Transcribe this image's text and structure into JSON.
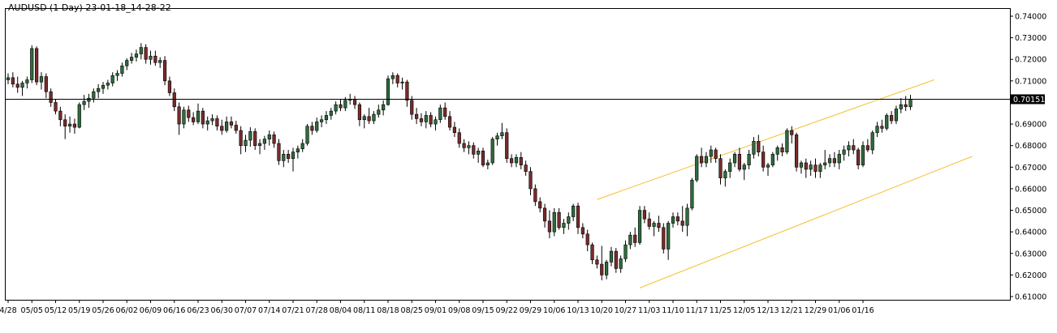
{
  "header": {
    "title": "AUDUSD (1 Day) 23-01-18_14-28-22"
  },
  "colors": {
    "bull_body": "#2e6b3c",
    "bear_body": "#7a2b2b",
    "wick": "#000000",
    "channel": "#f2c12e",
    "price_line": "#000000",
    "price_box": "#000000",
    "frame": "#000000"
  },
  "chart_data": {
    "type": "candlestick",
    "title": "AUDUSD (1 Day) 23-01-18_14-28-22",
    "ylim": [
      0.61,
      0.74
    ],
    "yticks": [
      "0.74000",
      "0.73000",
      "0.72000",
      "0.71000",
      "0.70000",
      "0.69000",
      "0.68000",
      "0.67000",
      "0.66000",
      "0.65000",
      "0.64000",
      "0.63000",
      "0.62000",
      "0.61000"
    ],
    "xticks": [
      "4/28",
      "05/05",
      "05/12",
      "05/19",
      "05/26",
      "06/02",
      "06/09",
      "06/16",
      "06/23",
      "06/30",
      "07/07",
      "07/14",
      "07/21",
      "07/28",
      "08/04",
      "08/11",
      "08/18",
      "08/25",
      "09/01",
      "09/08",
      "09/15",
      "09/22",
      "09/29",
      "10/06",
      "10/13",
      "10/20",
      "10/27",
      "11/03",
      "11/10",
      "11/17",
      "11/25",
      "12/05",
      "12/13",
      "12/21",
      "12/29",
      "01/06",
      "01/16"
    ],
    "current_price": 0.7015,
    "current_price_label": "0.70151",
    "channel": {
      "upper": {
        "start_index": 124,
        "start_value": 0.655,
        "end_index": 195,
        "end_value": 0.7105
      },
      "lower": {
        "start_index": 133,
        "start_value": 0.614,
        "end_index": 203,
        "end_value": 0.675
      }
    },
    "candles": [
      [
        0.7105,
        0.7135,
        0.7085,
        0.7115
      ],
      [
        0.7115,
        0.714,
        0.707,
        0.7085
      ],
      [
        0.7085,
        0.712,
        0.7045,
        0.707
      ],
      [
        0.707,
        0.71,
        0.703,
        0.709
      ],
      [
        0.709,
        0.712,
        0.7065,
        0.7105
      ],
      [
        0.7105,
        0.7265,
        0.709,
        0.725
      ],
      [
        0.725,
        0.726,
        0.708,
        0.7095
      ],
      [
        0.7095,
        0.714,
        0.706,
        0.712
      ],
      [
        0.712,
        0.7135,
        0.702,
        0.705
      ],
      [
        0.705,
        0.7065,
        0.698,
        0.7
      ],
      [
        0.7,
        0.7015,
        0.6945,
        0.696
      ],
      [
        0.696,
        0.698,
        0.689,
        0.692
      ],
      [
        0.692,
        0.6945,
        0.683,
        0.689
      ],
      [
        0.689,
        0.6935,
        0.686,
        0.69
      ],
      [
        0.69,
        0.6925,
        0.6855,
        0.6885
      ],
      [
        0.6885,
        0.7,
        0.688,
        0.699
      ],
      [
        0.699,
        0.7035,
        0.6965,
        0.7005
      ],
      [
        0.7005,
        0.704,
        0.6975,
        0.702
      ],
      [
        0.702,
        0.7065,
        0.7,
        0.705
      ],
      [
        0.705,
        0.7085,
        0.702,
        0.7065
      ],
      [
        0.7065,
        0.7095,
        0.704,
        0.708
      ],
      [
        0.708,
        0.7105,
        0.706,
        0.709
      ],
      [
        0.709,
        0.714,
        0.7075,
        0.7125
      ],
      [
        0.7125,
        0.715,
        0.71,
        0.7135
      ],
      [
        0.7135,
        0.7185,
        0.712,
        0.717
      ],
      [
        0.717,
        0.7205,
        0.715,
        0.7195
      ],
      [
        0.7195,
        0.723,
        0.718,
        0.721
      ],
      [
        0.721,
        0.7245,
        0.719,
        0.7225
      ],
      [
        0.7225,
        0.7275,
        0.72,
        0.7255
      ],
      [
        0.7255,
        0.727,
        0.718,
        0.72
      ],
      [
        0.72,
        0.724,
        0.7175,
        0.7215
      ],
      [
        0.7215,
        0.724,
        0.717,
        0.7185
      ],
      [
        0.7185,
        0.721,
        0.716,
        0.7195
      ],
      [
        0.7195,
        0.7215,
        0.708,
        0.71
      ],
      [
        0.71,
        0.712,
        0.703,
        0.7045
      ],
      [
        0.7045,
        0.7065,
        0.696,
        0.698
      ],
      [
        0.698,
        0.7,
        0.685,
        0.69
      ],
      [
        0.69,
        0.698,
        0.688,
        0.6965
      ],
      [
        0.6965,
        0.6985,
        0.691,
        0.693
      ],
      [
        0.693,
        0.6955,
        0.6895,
        0.691
      ],
      [
        0.691,
        0.6995,
        0.69,
        0.696
      ],
      [
        0.696,
        0.6975,
        0.688,
        0.69
      ],
      [
        0.69,
        0.6935,
        0.687,
        0.6915
      ],
      [
        0.6915,
        0.6945,
        0.6895,
        0.6925
      ],
      [
        0.6925,
        0.694,
        0.687,
        0.689
      ],
      [
        0.689,
        0.692,
        0.685,
        0.687
      ],
      [
        0.687,
        0.6935,
        0.686,
        0.691
      ],
      [
        0.691,
        0.6935,
        0.688,
        0.6895
      ],
      [
        0.6895,
        0.6915,
        0.6855,
        0.687
      ],
      [
        0.687,
        0.689,
        0.676,
        0.68
      ],
      [
        0.68,
        0.685,
        0.677,
        0.6825
      ],
      [
        0.6825,
        0.6885,
        0.6795,
        0.6865
      ],
      [
        0.6865,
        0.688,
        0.678,
        0.68
      ],
      [
        0.68,
        0.683,
        0.676,
        0.681
      ],
      [
        0.681,
        0.6845,
        0.678,
        0.683
      ],
      [
        0.683,
        0.687,
        0.68,
        0.685
      ],
      [
        0.685,
        0.6865,
        0.679,
        0.681
      ],
      [
        0.681,
        0.683,
        0.671,
        0.673
      ],
      [
        0.673,
        0.678,
        0.67,
        0.676
      ],
      [
        0.676,
        0.678,
        0.672,
        0.674
      ],
      [
        0.674,
        0.679,
        0.668,
        0.677
      ],
      [
        0.677,
        0.68,
        0.674,
        0.6785
      ],
      [
        0.6785,
        0.683,
        0.677,
        0.681
      ],
      [
        0.681,
        0.69,
        0.68,
        0.689
      ],
      [
        0.689,
        0.691,
        0.685,
        0.687
      ],
      [
        0.687,
        0.693,
        0.686,
        0.691
      ],
      [
        0.691,
        0.694,
        0.6885,
        0.692
      ],
      [
        0.692,
        0.696,
        0.69,
        0.694
      ],
      [
        0.694,
        0.6975,
        0.692,
        0.696
      ],
      [
        0.696,
        0.7005,
        0.6945,
        0.699
      ],
      [
        0.699,
        0.7015,
        0.696,
        0.6975
      ],
      [
        0.6975,
        0.7025,
        0.696,
        0.701
      ],
      [
        0.701,
        0.704,
        0.699,
        0.7015
      ],
      [
        0.7015,
        0.703,
        0.697,
        0.699
      ],
      [
        0.699,
        0.7,
        0.689,
        0.692
      ],
      [
        0.692,
        0.6945,
        0.688,
        0.6935
      ],
      [
        0.6935,
        0.6975,
        0.69,
        0.6915
      ],
      [
        0.6915,
        0.696,
        0.69,
        0.6945
      ],
      [
        0.6945,
        0.699,
        0.693,
        0.6965
      ],
      [
        0.6965,
        0.701,
        0.694,
        0.699
      ],
      [
        0.699,
        0.7125,
        0.6985,
        0.711
      ],
      [
        0.711,
        0.714,
        0.7085,
        0.7125
      ],
      [
        0.7125,
        0.7135,
        0.707,
        0.709
      ],
      [
        0.709,
        0.7115,
        0.706,
        0.7095
      ],
      [
        0.7095,
        0.7105,
        0.698,
        0.701
      ],
      [
        0.701,
        0.703,
        0.692,
        0.6945
      ],
      [
        0.6945,
        0.6975,
        0.69,
        0.6925
      ],
      [
        0.6925,
        0.695,
        0.689,
        0.691
      ],
      [
        0.691,
        0.696,
        0.688,
        0.694
      ],
      [
        0.694,
        0.6955,
        0.6885,
        0.69
      ],
      [
        0.69,
        0.6935,
        0.687,
        0.692
      ],
      [
        0.692,
        0.699,
        0.6905,
        0.6975
      ],
      [
        0.6975,
        0.7,
        0.692,
        0.6935
      ],
      [
        0.6935,
        0.696,
        0.687,
        0.6885
      ],
      [
        0.6885,
        0.691,
        0.684,
        0.686
      ],
      [
        0.686,
        0.688,
        0.679,
        0.681
      ],
      [
        0.681,
        0.683,
        0.677,
        0.679
      ],
      [
        0.679,
        0.682,
        0.676,
        0.68
      ],
      [
        0.68,
        0.6815,
        0.674,
        0.676
      ],
      [
        0.676,
        0.679,
        0.672,
        0.6775
      ],
      [
        0.6775,
        0.679,
        0.67,
        0.671
      ],
      [
        0.671,
        0.6735,
        0.669,
        0.672
      ],
      [
        0.672,
        0.684,
        0.671,
        0.683
      ],
      [
        0.683,
        0.686,
        0.68,
        0.6845
      ],
      [
        0.6845,
        0.6905,
        0.683,
        0.686
      ],
      [
        0.686,
        0.688,
        0.672,
        0.674
      ],
      [
        0.674,
        0.676,
        0.67,
        0.672
      ],
      [
        0.672,
        0.676,
        0.67,
        0.6745
      ],
      [
        0.6745,
        0.677,
        0.669,
        0.671
      ],
      [
        0.671,
        0.673,
        0.666,
        0.668
      ],
      [
        0.668,
        0.67,
        0.657,
        0.66
      ],
      [
        0.66,
        0.662,
        0.652,
        0.654
      ],
      [
        0.654,
        0.656,
        0.649,
        0.651
      ],
      [
        0.651,
        0.653,
        0.642,
        0.645
      ],
      [
        0.645,
        0.65,
        0.637,
        0.64
      ],
      [
        0.64,
        0.651,
        0.638,
        0.649
      ],
      [
        0.649,
        0.651,
        0.641,
        0.642
      ],
      [
        0.642,
        0.646,
        0.639,
        0.644
      ],
      [
        0.644,
        0.649,
        0.641,
        0.647
      ],
      [
        0.647,
        0.653,
        0.645,
        0.652
      ],
      [
        0.652,
        0.6535,
        0.639,
        0.642
      ],
      [
        0.642,
        0.644,
        0.637,
        0.639
      ],
      [
        0.639,
        0.641,
        0.631,
        0.634
      ],
      [
        0.634,
        0.635,
        0.625,
        0.627
      ],
      [
        0.627,
        0.629,
        0.623,
        0.625
      ],
      [
        0.625,
        0.6335,
        0.6175,
        0.62
      ],
      [
        0.62,
        0.627,
        0.618,
        0.626
      ],
      [
        0.626,
        0.633,
        0.624,
        0.631
      ],
      [
        0.631,
        0.6325,
        0.621,
        0.623
      ],
      [
        0.623,
        0.629,
        0.621,
        0.6275
      ],
      [
        0.6275,
        0.636,
        0.626,
        0.634
      ],
      [
        0.634,
        0.64,
        0.632,
        0.6385
      ],
      [
        0.6385,
        0.642,
        0.633,
        0.635
      ],
      [
        0.635,
        0.652,
        0.634,
        0.65
      ],
      [
        0.65,
        0.652,
        0.644,
        0.646
      ],
      [
        0.646,
        0.649,
        0.641,
        0.6425
      ],
      [
        0.6425,
        0.645,
        0.638,
        0.644
      ],
      [
        0.644,
        0.6475,
        0.64,
        0.642
      ],
      [
        0.642,
        0.644,
        0.63,
        0.632
      ],
      [
        0.632,
        0.645,
        0.627,
        0.644
      ],
      [
        0.644,
        0.649,
        0.642,
        0.647
      ],
      [
        0.647,
        0.649,
        0.643,
        0.645
      ],
      [
        0.645,
        0.652,
        0.64,
        0.643
      ],
      [
        0.643,
        0.653,
        0.638,
        0.651
      ],
      [
        0.651,
        0.665,
        0.65,
        0.664
      ],
      [
        0.664,
        0.676,
        0.663,
        0.675
      ],
      [
        0.675,
        0.679,
        0.67,
        0.672
      ],
      [
        0.672,
        0.677,
        0.67,
        0.675
      ],
      [
        0.675,
        0.68,
        0.672,
        0.678
      ],
      [
        0.678,
        0.679,
        0.672,
        0.674
      ],
      [
        0.674,
        0.676,
        0.662,
        0.665
      ],
      [
        0.665,
        0.669,
        0.661,
        0.668
      ],
      [
        0.668,
        0.674,
        0.665,
        0.672
      ],
      [
        0.672,
        0.677,
        0.67,
        0.676
      ],
      [
        0.676,
        0.679,
        0.668,
        0.669
      ],
      [
        0.669,
        0.672,
        0.664,
        0.671
      ],
      [
        0.671,
        0.678,
        0.669,
        0.676
      ],
      [
        0.676,
        0.684,
        0.674,
        0.682
      ],
      [
        0.682,
        0.685,
        0.675,
        0.677
      ],
      [
        0.677,
        0.68,
        0.668,
        0.67
      ],
      [
        0.67,
        0.672,
        0.666,
        0.671
      ],
      [
        0.671,
        0.677,
        0.67,
        0.676
      ],
      [
        0.676,
        0.68,
        0.673,
        0.679
      ],
      [
        0.679,
        0.681,
        0.675,
        0.677
      ],
      [
        0.677,
        0.688,
        0.676,
        0.687
      ],
      [
        0.687,
        0.689,
        0.681,
        0.685
      ],
      [
        0.685,
        0.686,
        0.668,
        0.67
      ],
      [
        0.67,
        0.673,
        0.667,
        0.672
      ],
      [
        0.672,
        0.674,
        0.665,
        0.669
      ],
      [
        0.669,
        0.673,
        0.666,
        0.671
      ],
      [
        0.671,
        0.674,
        0.665,
        0.668
      ],
      [
        0.668,
        0.672,
        0.665,
        0.671
      ],
      [
        0.671,
        0.678,
        0.669,
        0.672
      ],
      [
        0.672,
        0.676,
        0.67,
        0.674
      ],
      [
        0.674,
        0.677,
        0.67,
        0.672
      ],
      [
        0.672,
        0.678,
        0.669,
        0.676
      ],
      [
        0.676,
        0.68,
        0.673,
        0.678
      ],
      [
        0.678,
        0.682,
        0.675,
        0.68
      ],
      [
        0.68,
        0.683,
        0.676,
        0.678
      ],
      [
        0.678,
        0.679,
        0.669,
        0.671
      ],
      [
        0.671,
        0.682,
        0.67,
        0.68
      ],
      [
        0.68,
        0.683,
        0.677,
        0.678
      ],
      [
        0.678,
        0.687,
        0.676,
        0.686
      ],
      [
        0.686,
        0.691,
        0.684,
        0.689
      ],
      [
        0.689,
        0.692,
        0.686,
        0.688
      ],
      [
        0.688,
        0.695,
        0.687,
        0.694
      ],
      [
        0.694,
        0.696,
        0.69,
        0.6915
      ],
      [
        0.6915,
        0.6985,
        0.69,
        0.697
      ],
      [
        0.697,
        0.702,
        0.695,
        0.699
      ],
      [
        0.699,
        0.703,
        0.696,
        0.698
      ],
      [
        0.698,
        0.7035,
        0.6965,
        0.7015
      ]
    ]
  }
}
